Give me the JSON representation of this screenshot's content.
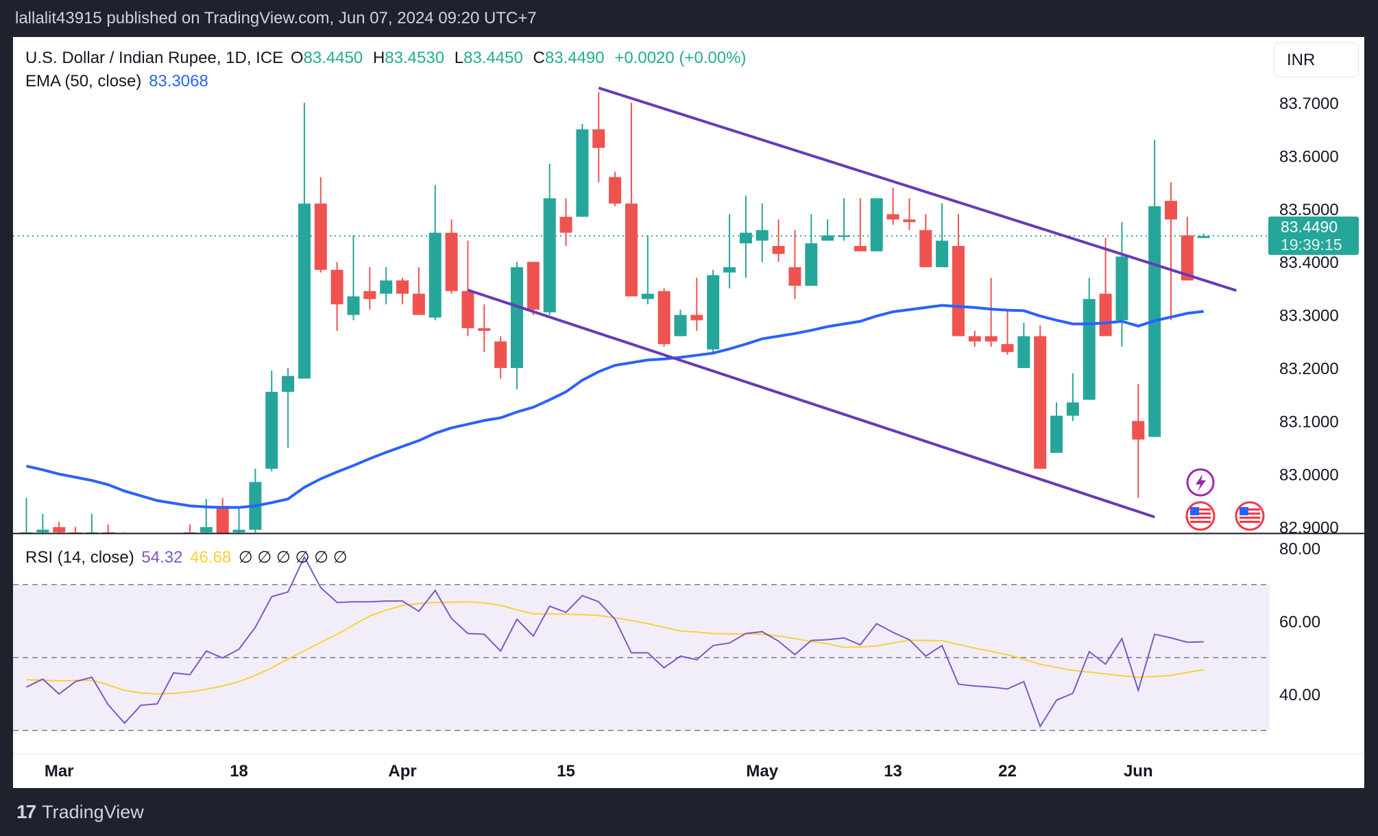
{
  "header": {
    "published": "lallalit43915 published on TradingView.com, Jun 07, 2024 09:20 UTC+7"
  },
  "legend": {
    "symbol": "U.S. Dollar / Indian Rupee, 1D, ICE",
    "o_label": "O",
    "o": "83.4450",
    "h_label": "H",
    "h": "83.4530",
    "l_label": "L",
    "l": "83.4450",
    "c_label": "C",
    "c": "83.4490",
    "change": "+0.0020 (+0.00%)",
    "ema_label": "EMA (50, close)",
    "ema_value": "83.3068"
  },
  "rsi_legend": {
    "label": "RSI (14, close)",
    "rsi": "54.32",
    "ma": "46.68",
    "na": "∅ ∅ ∅ ∅ ∅ ∅"
  },
  "currency_button": "INR",
  "last_price": {
    "price": "83.4490",
    "countdown": "19:39:15"
  },
  "footer": {
    "brand": "TradingView"
  },
  "colors": {
    "up": "#26a69a",
    "down": "#ef5350",
    "ema": "#2962ff",
    "trendline": "#673ab7",
    "rsi": "#7e57c2",
    "rsi_ma": "#f7d23a",
    "rsi_band": "#f1eef9"
  },
  "icons": [
    "lightning-event-icon",
    "us-flag-event-icon",
    "us-flag-event-icon"
  ],
  "chart_data": {
    "type": "candlestick",
    "price_axis": {
      "ticks": [
        "83.7000",
        "83.6000",
        "83.5000",
        "83.4000",
        "83.3000",
        "83.2000",
        "83.1000",
        "83.0000",
        "82.9000"
      ],
      "range": [
        82.9,
        83.7
      ]
    },
    "rsi_axis": {
      "ticks": [
        "80.00",
        "60.00",
        "40.00"
      ],
      "levels": [
        70,
        50,
        30
      ]
    },
    "time_labels": [
      {
        "d": "2024-03-01",
        "t": "Mar"
      },
      {
        "d": "2024-03-18",
        "t": "18"
      },
      {
        "d": "2024-04-01",
        "t": "Apr"
      },
      {
        "d": "2024-04-15",
        "t": "15"
      },
      {
        "d": "2024-05-01",
        "t": "May"
      },
      {
        "d": "2024-05-13",
        "t": "13"
      },
      {
        "d": "2024-05-22",
        "t": "22"
      },
      {
        "d": "2024-06-03",
        "t": "Jun"
      }
    ],
    "dates": [
      "2024-02-28",
      "2024-02-29",
      "2024-03-01",
      "2024-03-04",
      "2024-03-05",
      "2024-03-06",
      "2024-03-07",
      "2024-03-08",
      "2024-03-11",
      "2024-03-12",
      "2024-03-13",
      "2024-03-14",
      "2024-03-15",
      "2024-03-18",
      "2024-03-19",
      "2024-03-20",
      "2024-03-21",
      "2024-03-22",
      "2024-03-25",
      "2024-03-26",
      "2024-03-27",
      "2024-03-28",
      "2024-03-29",
      "2024-04-01",
      "2024-04-02",
      "2024-04-03",
      "2024-04-04",
      "2024-04-05",
      "2024-04-08",
      "2024-04-09",
      "2024-04-10",
      "2024-04-11",
      "2024-04-12",
      "2024-04-15",
      "2024-04-16",
      "2024-04-17",
      "2024-04-18",
      "2024-04-19",
      "2024-04-22",
      "2024-04-23",
      "2024-04-24",
      "2024-04-25",
      "2024-04-26",
      "2024-04-29",
      "2024-04-30",
      "2024-05-01",
      "2024-05-02",
      "2024-05-03",
      "2024-05-06",
      "2024-05-07",
      "2024-05-08",
      "2024-05-09",
      "2024-05-10",
      "2024-05-13",
      "2024-05-14",
      "2024-05-15",
      "2024-05-16",
      "2024-05-17",
      "2024-05-20",
      "2024-05-21",
      "2024-05-22",
      "2024-05-23",
      "2024-05-24",
      "2024-05-27",
      "2024-05-28",
      "2024-05-29",
      "2024-05-30",
      "2024-05-31",
      "2024-06-03",
      "2024-06-04",
      "2024-06-05",
      "2024-06-06",
      "2024-06-07"
    ],
    "ohlc": [
      [
        82.88,
        82.955,
        82.87,
        82.89
      ],
      [
        82.89,
        82.925,
        82.88,
        82.895
      ],
      [
        82.9,
        82.91,
        82.88,
        82.89
      ],
      [
        82.89,
        82.9,
        82.88,
        82.885
      ],
      [
        82.88,
        82.925,
        82.87,
        82.89
      ],
      [
        82.89,
        82.905,
        82.87,
        82.88
      ],
      [
        82.88,
        82.89,
        82.86,
        82.87
      ],
      [
        82.87,
        82.88,
        82.85,
        82.86
      ],
      [
        82.86,
        82.88,
        82.85,
        82.87
      ],
      [
        82.87,
        82.885,
        82.86,
        82.88
      ],
      [
        82.89,
        82.905,
        82.87,
        82.88
      ],
      [
        82.89,
        82.953,
        82.88,
        82.9
      ],
      [
        82.94,
        82.955,
        82.87,
        82.88
      ],
      [
        82.89,
        82.935,
        82.88,
        82.895
      ],
      [
        82.895,
        83.01,
        82.89,
        82.985
      ],
      [
        83.01,
        83.195,
        83.005,
        83.155
      ],
      [
        83.155,
        83.2,
        83.05,
        83.185
      ],
      [
        83.18,
        83.7,
        83.18,
        83.51
      ],
      [
        83.51,
        83.56,
        83.38,
        83.385
      ],
      [
        83.385,
        83.4,
        83.27,
        83.32
      ],
      [
        83.3,
        83.45,
        83.29,
        83.335
      ],
      [
        83.345,
        83.39,
        83.31,
        83.33
      ],
      [
        83.34,
        83.39,
        83.32,
        83.365
      ],
      [
        83.365,
        83.37,
        83.32,
        83.34
      ],
      [
        83.34,
        83.39,
        83.3,
        83.3
      ],
      [
        83.295,
        83.545,
        83.29,
        83.455
      ],
      [
        83.455,
        83.48,
        83.34,
        83.345
      ],
      [
        83.345,
        83.44,
        83.26,
        83.275
      ],
      [
        83.275,
        83.32,
        83.23,
        83.27
      ],
      [
        83.25,
        83.26,
        83.18,
        83.2
      ],
      [
        83.2,
        83.4,
        83.16,
        83.39
      ],
      [
        83.4,
        83.4,
        83.3,
        83.31
      ],
      [
        83.305,
        83.585,
        83.3,
        83.52
      ],
      [
        83.485,
        83.52,
        83.43,
        83.455
      ],
      [
        83.485,
        83.66,
        83.485,
        83.65
      ],
      [
        83.65,
        83.72,
        83.55,
        83.615
      ],
      [
        83.56,
        83.57,
        83.505,
        83.51
      ],
      [
        83.51,
        83.7,
        83.335,
        83.335
      ],
      [
        83.33,
        83.45,
        83.32,
        83.34
      ],
      [
        83.345,
        83.35,
        83.24,
        83.245
      ],
      [
        83.26,
        83.31,
        83.26,
        83.3
      ],
      [
        83.3,
        83.37,
        83.27,
        83.29
      ],
      [
        83.235,
        83.385,
        83.23,
        83.375
      ],
      [
        83.38,
        83.49,
        83.35,
        83.39
      ],
      [
        83.435,
        83.525,
        83.37,
        83.455
      ],
      [
        83.44,
        83.51,
        83.4,
        83.46
      ],
      [
        83.43,
        83.48,
        83.4,
        83.415
      ],
      [
        83.39,
        83.46,
        83.33,
        83.355
      ],
      [
        83.355,
        83.49,
        83.355,
        83.435
      ],
      [
        83.44,
        83.48,
        83.44,
        83.45
      ],
      [
        83.447,
        83.52,
        83.44,
        83.45
      ],
      [
        83.43,
        83.52,
        83.42,
        83.42
      ],
      [
        83.42,
        83.52,
        83.42,
        83.52
      ],
      [
        83.49,
        83.54,
        83.47,
        83.48
      ],
      [
        83.48,
        83.52,
        83.46,
        83.475
      ],
      [
        83.46,
        83.49,
        83.39,
        83.39
      ],
      [
        83.39,
        83.51,
        83.39,
        83.44
      ],
      [
        83.43,
        83.49,
        83.26,
        83.26
      ],
      [
        83.26,
        83.27,
        83.24,
        83.25
      ],
      [
        83.26,
        83.37,
        83.24,
        83.25
      ],
      [
        83.245,
        83.31,
        83.225,
        83.23
      ],
      [
        83.2,
        83.285,
        83.2,
        83.26
      ],
      [
        83.26,
        83.28,
        83.01,
        83.01
      ],
      [
        83.04,
        83.135,
        83.04,
        83.11
      ],
      [
        83.11,
        83.19,
        83.1,
        83.135
      ],
      [
        83.14,
        83.37,
        83.14,
        83.33
      ],
      [
        83.34,
        83.445,
        83.26,
        83.26
      ],
      [
        83.29,
        83.475,
        83.24,
        83.41
      ],
      [
        83.1,
        83.17,
        82.955,
        83.065
      ],
      [
        83.07,
        83.63,
        83.07,
        83.505
      ],
      [
        83.515,
        83.55,
        83.29,
        83.48
      ],
      [
        83.45,
        83.485,
        83.365,
        83.365
      ],
      [
        83.445,
        83.453,
        83.445,
        83.449
      ]
    ],
    "ema50": [
      83.015,
      83.008,
      83.0,
      82.994,
      82.988,
      82.98,
      82.968,
      82.959,
      82.95,
      82.945,
      82.94,
      82.938,
      82.937,
      82.937,
      82.94,
      82.946,
      82.953,
      82.975,
      82.991,
      83.004,
      83.016,
      83.029,
      83.041,
      83.052,
      83.063,
      83.077,
      83.087,
      83.094,
      83.101,
      83.106,
      83.117,
      83.126,
      83.14,
      83.155,
      83.177,
      83.193,
      83.205,
      83.21,
      83.215,
      83.217,
      83.22,
      83.224,
      83.228,
      83.236,
      83.245,
      83.255,
      83.26,
      83.265,
      83.271,
      83.278,
      83.283,
      83.288,
      83.298,
      83.306,
      83.31,
      83.314,
      83.318,
      83.316,
      83.314,
      83.311,
      83.309,
      83.308,
      83.298,
      83.29,
      83.283,
      83.283,
      83.285,
      83.288,
      83.279,
      83.289,
      83.296,
      83.303,
      83.3068
    ],
    "rsi14": [
      41.9,
      44.1,
      40,
      43.4,
      44.6,
      37.1,
      32,
      36.9,
      37.3,
      45.8,
      45.3,
      51.8,
      49.9,
      52.3,
      58.3,
      66.7,
      68,
      77.6,
      69.2,
      65.1,
      65.3,
      65.3,
      65.5,
      65.5,
      62.7,
      68.4,
      60.7,
      56.6,
      56.4,
      51.8,
      60.5,
      55.9,
      64.1,
      62.4,
      67,
      65.3,
      60.5,
      51.3,
      51.3,
      47.2,
      50.4,
      49.4,
      53.3,
      54,
      56.6,
      57.1,
      54.5,
      50.8,
      54.7,
      54.9,
      55.4,
      53.5,
      59.3,
      56.9,
      54.9,
      50.4,
      53.3,
      42.7,
      42.2,
      41.9,
      41.4,
      43.4,
      31.1,
      38.3,
      40.2,
      51.6,
      48.2,
      55.2,
      41,
      56.4,
      55.4,
      54.2,
      54.32
    ],
    "rsi_ma": [
      43.9,
      43.8,
      43.6,
      43.7,
      43.8,
      42.5,
      41,
      40.3,
      40,
      40.2,
      40.6,
      41.3,
      42.2,
      43.4,
      45.1,
      47.2,
      49.6,
      51.8,
      54.2,
      56.4,
      58.9,
      61.4,
      63,
      64.3,
      64.8,
      65.1,
      65.2,
      65.3,
      65,
      64.3,
      63.1,
      62,
      62,
      61.9,
      61.8,
      61.5,
      60.9,
      60.2,
      59.3,
      58.3,
      57.3,
      57,
      56.6,
      56.5,
      56.5,
      56.4,
      55.9,
      55.2,
      54.4,
      53.8,
      52.8,
      52.9,
      53.2,
      54,
      54.7,
      54.7,
      54.6,
      53.6,
      52.6,
      51.7,
      50.8,
      49.5,
      48.2,
      47.3,
      46.5,
      46,
      45.5,
      45,
      44.6,
      44.8,
      45.1,
      45.9,
      46.68
    ],
    "trendlines": [
      {
        "from": [
          "2024-04-17",
          83.728
        ],
        "to": [
          "2024-06-11",
          83.346
        ]
      },
      {
        "from": [
          "2024-04-05",
          83.347
        ],
        "to": [
          "2024-06-04",
          82.919
        ]
      }
    ]
  }
}
